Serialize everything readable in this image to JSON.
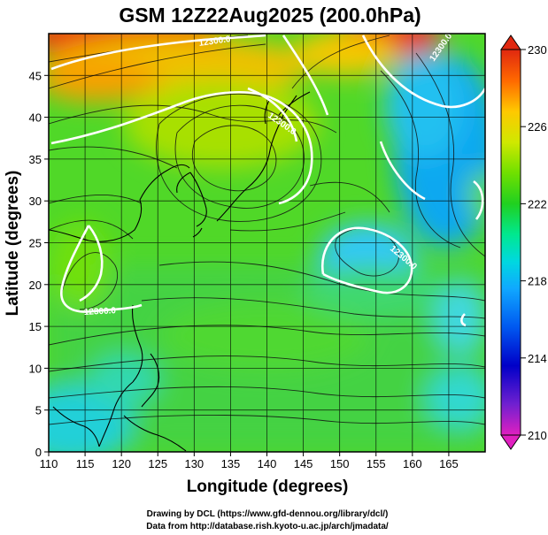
{
  "title": "GSM 12Z22Aug2025 (200.0hPa)",
  "xlabel": "Longitude (degrees)",
  "ylabel": "Latitude  (degrees)",
  "x_ticks": [
    "110",
    "115",
    "120",
    "125",
    "130",
    "135",
    "140",
    "145",
    "150",
    "155",
    "160",
    "165"
  ],
  "y_ticks": [
    "0",
    "5",
    "10",
    "15",
    "20",
    "25",
    "30",
    "35",
    "40",
    "45"
  ],
  "colorbar_ticks": [
    "210",
    "214",
    "218",
    "222",
    "226",
    "230"
  ],
  "contour_labels": [
    "12300.0",
    "12300.0",
    "12300.0",
    "12300.0",
    "12300.0"
  ],
  "credits": {
    "line1": "Drawing by DCL (https://www.gfd-dennou.org/library/dcl/)",
    "line2": "Data from http://database.rish.kyoto-u.ac.jp/arch/jmadata/"
  },
  "chart_data": {
    "type": "heatmap",
    "title": "GSM 12Z22Aug2025 (200.0hPa)",
    "xlabel": "Longitude (degrees)",
    "ylabel": "Latitude  (degrees)",
    "xlim": [
      110,
      170
    ],
    "ylim": [
      0,
      50
    ],
    "grid": true,
    "colorbar": {
      "min": 210,
      "max": 230,
      "ticks": [
        210,
        214,
        218,
        222,
        226,
        230
      ],
      "colors": [
        "#e020c0",
        "#6020d0",
        "#0000d0",
        "#0050f0",
        "#10a0ff",
        "#00d8e8",
        "#00e8a0",
        "#20d020",
        "#60dd00",
        "#c8e800",
        "#ffd000",
        "#ff7000",
        "#e83010"
      ]
    },
    "overlays": [
      "streamlines",
      "coastlines",
      "height contours (12300.0)"
    ],
    "features": [
      {
        "kind": "warm",
        "lon": 115,
        "lat": 50,
        "value": 229
      },
      {
        "kind": "warm",
        "lon": 157,
        "lat": 49,
        "value": 228
      },
      {
        "kind": "warm",
        "lon": 130,
        "lat": 44,
        "value": 225
      },
      {
        "kind": "cool",
        "lon": 163,
        "lat": 40,
        "value": 218
      },
      {
        "kind": "cool",
        "lon": 155,
        "lat": 24,
        "value": 218
      },
      {
        "kind": "cool",
        "lon": 113,
        "lat": 4,
        "value": 218
      },
      {
        "kind": "cool",
        "lon": 168,
        "lat": 8,
        "value": 219
      }
    ]
  }
}
